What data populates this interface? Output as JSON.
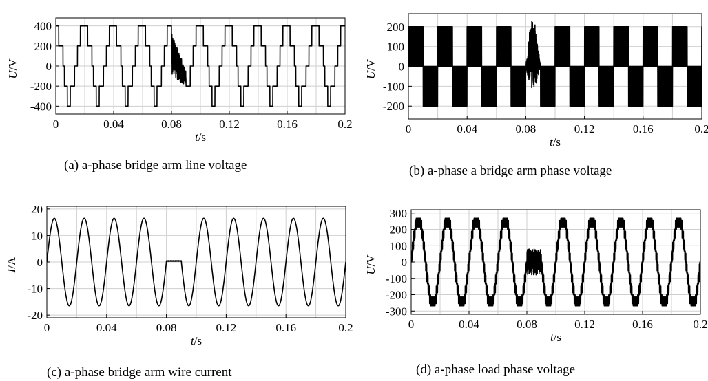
{
  "chart_data": [
    {
      "id": "a",
      "type": "line",
      "caption": "(a) a-phase bridge arm line voltage",
      "xlabel": "t/s",
      "ylabel": "U/V",
      "xlim": [
        0,
        0.2
      ],
      "ylim": [
        -480,
        480
      ],
      "xticks": [
        0,
        0.04,
        0.08,
        0.12,
        0.16,
        0.2
      ],
      "xtick_labels": [
        "0",
        "0.04",
        "0.08",
        "0.12",
        "0.16",
        "0.2"
      ],
      "yticks": [
        400,
        200,
        0,
        -200,
        -400
      ],
      "ytick_labels": [
        "400",
        "200",
        "0",
        "-200",
        "-400"
      ],
      "grid": true,
      "series": [
        {
          "waveform": "staircase-square",
          "frequency_hz": 50,
          "levels": [
            -400,
            -200,
            0,
            200,
            400
          ],
          "peak": 400,
          "fault_interval": [
            0.08,
            0.09
          ],
          "fault_range": [
            -260,
            260
          ]
        }
      ]
    },
    {
      "id": "b",
      "type": "line",
      "caption": "(b) a-phase a bridge arm phase voltage",
      "xlabel": "t/s",
      "ylabel": "U/V",
      "xlim": [
        0,
        0.2
      ],
      "ylim": [
        -265,
        265
      ],
      "xticks": [
        0,
        0.04,
        0.08,
        0.12,
        0.16,
        0.2
      ],
      "xtick_labels": [
        "0",
        "0.04",
        "0.08",
        "0.12",
        "0.16",
        "0.2"
      ],
      "yticks": [
        200,
        100,
        0,
        -100,
        -200
      ],
      "ytick_labels": [
        "200",
        "100",
        "0",
        "-100",
        "-200"
      ],
      "grid": true,
      "series": [
        {
          "waveform": "pwm-square",
          "frequency_hz": 50,
          "levels": [
            -200,
            0,
            200
          ],
          "peak": 200,
          "fault_interval": [
            0.08,
            0.09
          ],
          "fault_range": [
            -200,
            200
          ]
        }
      ]
    },
    {
      "id": "c",
      "type": "line",
      "caption": "(c) a-phase bridge arm wire current",
      "xlabel": "t/s",
      "ylabel": "I/A",
      "xlim": [
        0,
        0.2
      ],
      "ylim": [
        -21,
        21
      ],
      "xticks": [
        0,
        0.04,
        0.08,
        0.12,
        0.16,
        0.2
      ],
      "xtick_labels": [
        "0",
        "0.04",
        "0.08",
        "0.12",
        "0.16",
        "0.2"
      ],
      "yticks": [
        20,
        10,
        0,
        -10,
        -20
      ],
      "ytick_labels": [
        "20",
        "10",
        "0",
        "-10",
        "-20"
      ],
      "grid": true,
      "series": [
        {
          "waveform": "sine",
          "frequency_hz": 50,
          "amplitude": 16.5,
          "fault_interval": [
            0.08,
            0.09
          ],
          "fault_value": 0.5
        }
      ]
    },
    {
      "id": "d",
      "type": "line",
      "caption": "(d) a-phase load phase voltage",
      "xlabel": "t/s",
      "ylabel": "U/V",
      "xlim": [
        0,
        0.2
      ],
      "ylim": [
        -320,
        320
      ],
      "xticks": [
        0,
        0.04,
        0.08,
        0.12,
        0.16,
        0.2
      ],
      "xtick_labels": [
        "0",
        "0.04",
        "0.08",
        "0.12",
        "0.16",
        "0.2"
      ],
      "yticks": [
        300,
        200,
        100,
        0,
        -100,
        -200,
        -300
      ],
      "ytick_labels": [
        "300",
        "200",
        "100",
        "0",
        "-100",
        "-200",
        "-300"
      ],
      "grid": true,
      "series": [
        {
          "waveform": "multilevel-sine",
          "frequency_hz": 50,
          "peak": 265,
          "step": 67,
          "fault_interval": [
            0.08,
            0.09
          ],
          "fault_range": [
            -80,
            80
          ]
        }
      ]
    }
  ]
}
